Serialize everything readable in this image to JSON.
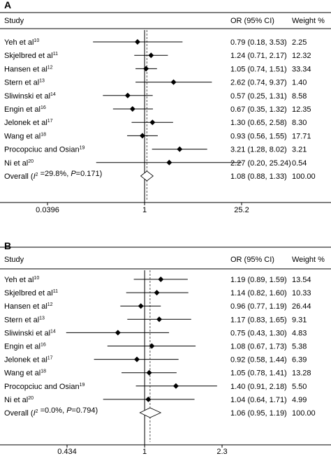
{
  "chart_data": [
    {
      "type": "forest",
      "panel_label": "A",
      "headers": {
        "study": "Study",
        "ci": "OR (95% CI)",
        "weight": "Weight %"
      },
      "scale": "log",
      "ticks": [
        "0.0396",
        "1",
        "25.2"
      ],
      "tick_values": [
        0.0396,
        1,
        25.2
      ],
      "studies": [
        {
          "name": "Yeh et al",
          "ref": "10",
          "or": 0.79,
          "lo": 0.18,
          "hi": 3.53,
          "ci_text": "0.79 (0.18, 3.53)",
          "weight": "2.25"
        },
        {
          "name": "Skjelbred et al",
          "ref": "11",
          "or": 1.24,
          "lo": 0.71,
          "hi": 2.17,
          "ci_text": "1.24 (0.71, 2.17)",
          "weight": "12.32"
        },
        {
          "name": "Hansen et al",
          "ref": "12",
          "or": 1.05,
          "lo": 0.74,
          "hi": 1.51,
          "ci_text": "1.05 (0.74, 1.51)",
          "weight": "33.34"
        },
        {
          "name": "Stern et al",
          "ref": "13",
          "or": 2.62,
          "lo": 0.74,
          "hi": 9.37,
          "ci_text": "2.62 (0.74, 9.37)",
          "weight": "1.40"
        },
        {
          "name": "Sliwinski et al",
          "ref": "14",
          "or": 0.57,
          "lo": 0.25,
          "hi": 1.31,
          "ci_text": "0.57 (0.25, 1.31)",
          "weight": "8.58"
        },
        {
          "name": "Engin et al",
          "ref": "16",
          "or": 0.67,
          "lo": 0.35,
          "hi": 1.32,
          "ci_text": "0.67 (0.35, 1.32)",
          "weight": "12.35"
        },
        {
          "name": "Jelonek et al",
          "ref": "17",
          "or": 1.3,
          "lo": 0.65,
          "hi": 2.58,
          "ci_text": "1.30 (0.65, 2.58)",
          "weight": "8.30"
        },
        {
          "name": "Wang et al",
          "ref": "18",
          "or": 0.93,
          "lo": 0.56,
          "hi": 1.55,
          "ci_text": "0.93 (0.56, 1.55)",
          "weight": "17.71"
        },
        {
          "name": "Procopciuc and Osian",
          "ref": "19",
          "or": 3.21,
          "lo": 1.28,
          "hi": 8.02,
          "ci_text": "3.21 (1.28, 8.02)",
          "weight": "3.21"
        },
        {
          "name": "Ni et al",
          "ref": "20",
          "or": 2.27,
          "lo": 0.2,
          "hi": 25.24,
          "ci_text": "2.27 (0.20, 25.24)",
          "weight": "0.54"
        }
      ],
      "overall": {
        "label_prefix": "Overall (",
        "i2_symbol": "I",
        "i2_sup": "2",
        "label_suffix": " =29.8%, ",
        "p_symbol": "P",
        "p_text": "=0.171)",
        "or": 1.08,
        "lo": 0.88,
        "hi": 1.33,
        "ci_text": "1.08 (0.88, 1.33)",
        "weight": "100.00"
      }
    },
    {
      "type": "forest",
      "panel_label": "B",
      "headers": {
        "study": "Study",
        "ci": "OR (95% CI)",
        "weight": "Weight %"
      },
      "scale": "log",
      "ticks": [
        "0.434",
        "1",
        "2.3"
      ],
      "tick_values": [
        0.434,
        1,
        2.3
      ],
      "studies": [
        {
          "name": "Yeh et al",
          "ref": "10",
          "or": 1.19,
          "lo": 0.89,
          "hi": 1.59,
          "ci_text": "1.19 (0.89, 1.59)",
          "weight": "13.54"
        },
        {
          "name": "Skjelbred et al",
          "ref": "11",
          "or": 1.14,
          "lo": 0.82,
          "hi": 1.6,
          "ci_text": "1.14 (0.82, 1.60)",
          "weight": "10.33"
        },
        {
          "name": "Hansen et al",
          "ref": "12",
          "or": 0.96,
          "lo": 0.77,
          "hi": 1.19,
          "ci_text": "0.96 (0.77, 1.19)",
          "weight": "26.44"
        },
        {
          "name": "Stern et al",
          "ref": "13",
          "or": 1.17,
          "lo": 0.83,
          "hi": 1.65,
          "ci_text": "1.17 (0.83, 1.65)",
          "weight": "9.31"
        },
        {
          "name": "Sliwinski et al",
          "ref": "14",
          "or": 0.75,
          "lo": 0.43,
          "hi": 1.3,
          "ci_text": "0.75 (0.43, 1.30)",
          "weight": "4.83"
        },
        {
          "name": "Engin et al",
          "ref": "16",
          "or": 1.08,
          "lo": 0.67,
          "hi": 1.73,
          "ci_text": "1.08 (0.67, 1.73)",
          "weight": "5.38"
        },
        {
          "name": "Jelonek et al",
          "ref": "17",
          "or": 0.92,
          "lo": 0.58,
          "hi": 1.44,
          "ci_text": "0.92 (0.58, 1.44)",
          "weight": "6.39"
        },
        {
          "name": "Wang et al",
          "ref": "18",
          "or": 1.05,
          "lo": 0.78,
          "hi": 1.41,
          "ci_text": "1.05 (0.78, 1.41)",
          "weight": "13.28"
        },
        {
          "name": "Procopciuc and Osian",
          "ref": "19",
          "or": 1.4,
          "lo": 0.91,
          "hi": 2.18,
          "ci_text": "1.40 (0.91, 2.18)",
          "weight": "5.50"
        },
        {
          "name": "Ni et al",
          "ref": "20",
          "or": 1.04,
          "lo": 0.64,
          "hi": 1.71,
          "ci_text": "1.04 (0.64, 1.71)",
          "weight": "4.99"
        }
      ],
      "overall": {
        "label_prefix": "Overall (",
        "i2_symbol": "I",
        "i2_sup": "2",
        "label_suffix": " =0.0%, ",
        "p_symbol": "P",
        "p_text": "=0.794)",
        "or": 1.06,
        "lo": 0.95,
        "hi": 1.19,
        "ci_text": "1.06 (0.95, 1.19)",
        "weight": "100.00"
      }
    }
  ]
}
